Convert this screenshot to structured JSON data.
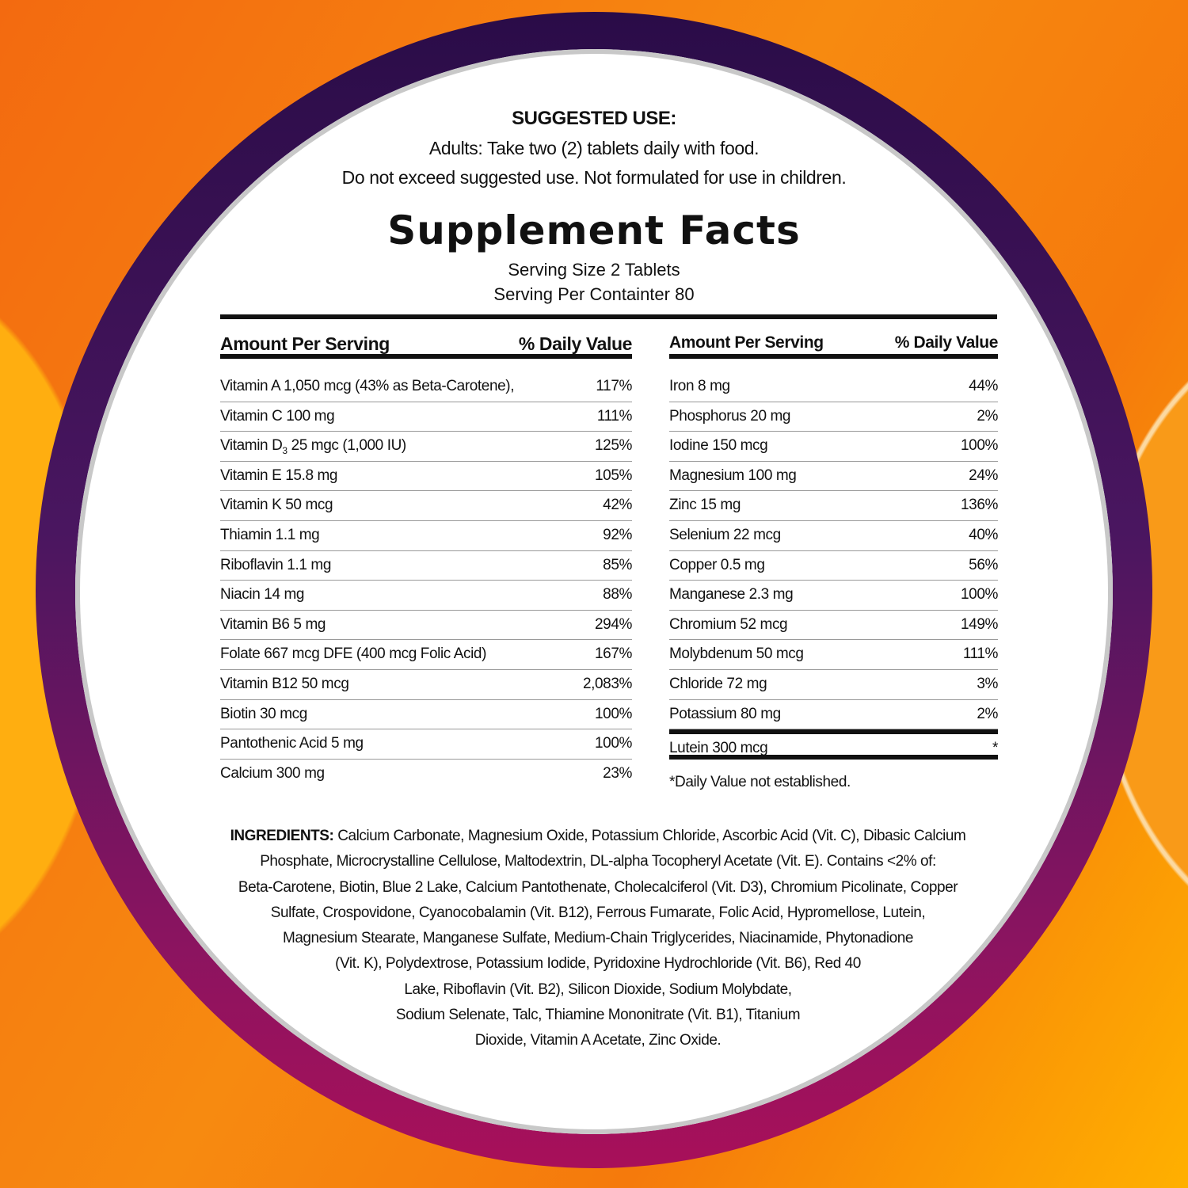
{
  "colors": {
    "background": "#f57a0c",
    "ring_top": "#2a0c48",
    "ring_bottom": "#a8105a",
    "panel": "#ffffff",
    "text": "#111111"
  },
  "suggested_use": {
    "title": "SUGGESTED USE:",
    "line1": "Adults: Take two (2) tablets daily with food.",
    "line2": "Do not exceed suggested use. Not formulated for use in children."
  },
  "facts": {
    "title": "Supplement Facts",
    "serving_size": "Serving Size 2 Tablets",
    "servings_per_container": "Serving Per Containter 80",
    "header_amount": "Amount Per Serving",
    "header_dv": "% Daily Value",
    "left_rows": [
      {
        "name": "Vitamin A 1,050 mcg (43% as Beta-Carotene),",
        "dv": "117%"
      },
      {
        "name": "Vitamin C 100 mg",
        "dv": "111%"
      },
      {
        "name": "Vitamin D",
        "sub": "3",
        "name_rest": " 25 mgc (1,000 IU)",
        "dv": "125%"
      },
      {
        "name": "Vitamin E 15.8 mg",
        "dv": "105%"
      },
      {
        "name": "Vitamin K 50 mcg",
        "dv": "42%"
      },
      {
        "name": "Thiamin 1.1 mg",
        "dv": "92%"
      },
      {
        "name": "Riboflavin 1.1 mg",
        "dv": "85%"
      },
      {
        "name": "Niacin 14 mg",
        "dv": "88%"
      },
      {
        "name": "Vitamin B6 5 mg",
        "dv": "294%"
      },
      {
        "name": "Folate 667 mcg DFE (400 mcg Folic Acid)",
        "dv": "167%"
      },
      {
        "name": "Vitamin B12 50 mcg",
        "dv": "2,083%"
      },
      {
        "name": "Biotin 30 mcg",
        "dv": "100%"
      },
      {
        "name": "Pantothenic Acid 5 mg",
        "dv": "100%"
      },
      {
        "name": "Calcium 300 mg",
        "dv": "23%"
      }
    ],
    "right_rows": [
      {
        "name": "Iron 8 mg",
        "dv": "44%"
      },
      {
        "name": "Phosphorus 20 mg",
        "dv": "2%"
      },
      {
        "name": "Iodine 150 mcg",
        "dv": "100%"
      },
      {
        "name": "Magnesium 100 mg",
        "dv": "24%"
      },
      {
        "name": "Zinc 15 mg",
        "dv": "136%"
      },
      {
        "name": "Selenium 22 mcg",
        "dv": "40%"
      },
      {
        "name": "Copper 0.5 mg",
        "dv": "56%"
      },
      {
        "name": "Manganese 2.3 mg",
        "dv": "100%"
      },
      {
        "name": "Chromium 52 mcg",
        "dv": "149%"
      },
      {
        "name": "Molybdenum 50 mcg",
        "dv": "111%"
      },
      {
        "name": "Chloride 72 mg",
        "dv": "3%"
      },
      {
        "name": "Potassium 80 mg",
        "dv": "2%"
      },
      {
        "name": "Lutein 300 mcg",
        "dv": "*"
      }
    ],
    "footnote": "*Daily Value not established."
  },
  "ingredients": {
    "label": "INGREDIENTS:",
    "lines": [
      " Calcium Carbonate, Magnesium Oxide, Potassium Chloride, Ascorbic Acid (Vit. C), Dibasic Calcium",
      "Phosphate, Microcrystalline Cellulose, Maltodextrin, DL-alpha Tocopheryl Acetate (Vit. E). Contains <2% of:",
      "Beta-Carotene, Biotin, Blue 2 Lake, Calcium Pantothenate, Cholecalciferol (Vit. D3), Chromium Picolinate, Copper",
      "Sulfate, Crospovidone, Cyanocobalamin (Vit. B12), Ferrous Fumarate, Folic Acid, Hypromellose, Lutein,",
      "Magnesium Stearate, Manganese Sulfate, Medium-Chain Triglycerides, Niacinamide, Phytonadione",
      "(Vit. K), Polydextrose, Potassium Iodide, Pyridoxine Hydrochloride (Vit. B6), Red 40",
      "Lake, Riboflavin (Vit. B2), Silicon Dioxide, Sodium Molybdate,",
      "Sodium Selenate, Talc, Thiamine Mononitrate (Vit. B1), Titanium",
      "Dioxide, Vitamin A Acetate, Zinc Oxide."
    ]
  }
}
